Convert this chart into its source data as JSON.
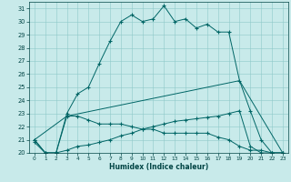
{
  "xlabel": "Humidex (Indice chaleur)",
  "background_color": "#c8eaea",
  "grid_color": "#8ec8c8",
  "line_color": "#006666",
  "xlim": [
    -0.5,
    23.5
  ],
  "ylim": [
    20,
    31.5
  ],
  "yticks": [
    20,
    21,
    22,
    23,
    24,
    25,
    26,
    27,
    28,
    29,
    30,
    31
  ],
  "xticks": [
    0,
    1,
    2,
    3,
    4,
    5,
    6,
    7,
    8,
    9,
    10,
    11,
    12,
    13,
    14,
    15,
    16,
    17,
    18,
    19,
    20,
    21,
    22,
    23
  ],
  "line1_x": [
    0,
    1,
    2,
    3,
    4,
    5,
    6,
    7,
    8,
    9,
    10,
    11,
    12,
    13,
    14,
    15,
    16,
    17,
    18,
    19,
    20,
    21,
    22,
    23
  ],
  "line1_y": [
    21.0,
    20.0,
    20.0,
    23.0,
    24.5,
    25.0,
    26.8,
    28.5,
    30.0,
    30.5,
    30.0,
    30.2,
    31.2,
    30.0,
    30.2,
    29.5,
    29.8,
    29.2,
    29.2,
    25.5,
    23.2,
    21.0,
    20.0,
    20.0
  ],
  "line2_x": [
    0,
    1,
    2,
    3,
    4,
    5,
    6,
    7,
    8,
    9,
    10,
    11,
    12,
    13,
    14,
    15,
    16,
    17,
    18,
    19,
    20,
    21,
    22,
    23
  ],
  "line2_y": [
    21.0,
    20.0,
    20.0,
    22.8,
    22.8,
    22.5,
    22.2,
    22.2,
    22.2,
    22.0,
    21.8,
    21.8,
    21.5,
    21.5,
    21.5,
    21.5,
    21.5,
    21.2,
    21.0,
    20.5,
    20.2,
    20.2,
    20.0,
    20.0
  ],
  "line3_x": [
    0,
    1,
    2,
    3,
    4,
    5,
    6,
    7,
    8,
    9,
    10,
    11,
    12,
    13,
    14,
    15,
    16,
    17,
    18,
    19,
    20,
    21,
    22,
    23
  ],
  "line3_y": [
    20.8,
    20.0,
    20.0,
    20.2,
    20.5,
    20.6,
    20.8,
    21.0,
    21.3,
    21.5,
    21.8,
    22.0,
    22.2,
    22.4,
    22.5,
    22.6,
    22.7,
    22.8,
    23.0,
    23.2,
    20.5,
    20.0,
    20.0,
    20.0
  ],
  "line4_x": [
    0,
    3,
    19,
    23
  ],
  "line4_y": [
    21.0,
    22.8,
    25.5,
    20.0
  ]
}
